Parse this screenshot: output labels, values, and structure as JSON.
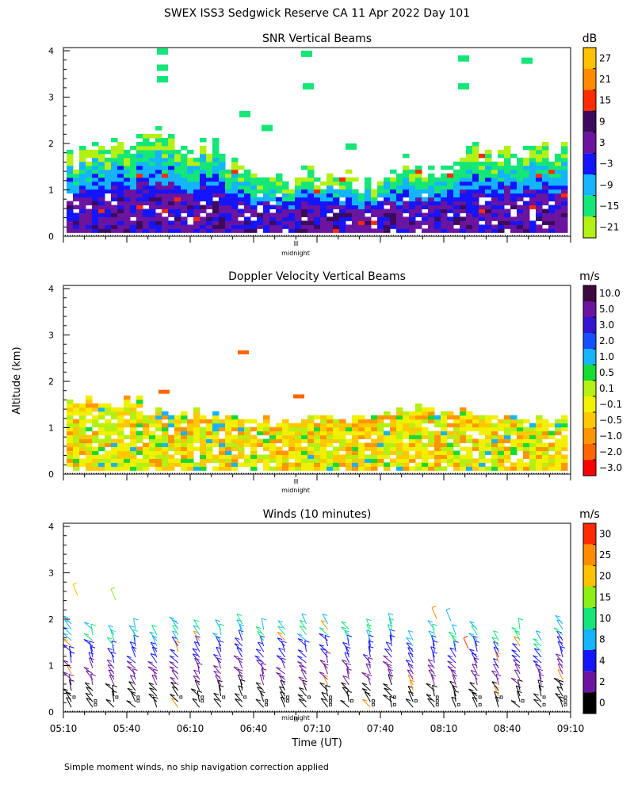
{
  "page": {
    "title": "SWEX ISS3 Sedgwick Reserve CA  11 Apr 2022 Day 101",
    "ylabel": "Altitude (km)",
    "xlabel": "Time (UT)",
    "footnote": "Simple moment winds, no ship navigation correction applied",
    "midnight_label": "midnight"
  },
  "chart_data": [
    {
      "type": "heatmap",
      "title": "SNR Vertical Beams",
      "ylim": [
        0,
        4
      ],
      "yticks": [
        "0",
        "1",
        "2",
        "3",
        "4"
      ],
      "colorbar": {
        "unit": "dB",
        "labels": [
          "27",
          "21",
          "15",
          "9",
          "3",
          "−3",
          "−9",
          "−15",
          "−21"
        ],
        "colors": [
          "#ffc200",
          "#ff8c00",
          "#ff2a00",
          "#3c0a5a",
          "#6a14a0",
          "#1414ff",
          "#14b4ff",
          "#14e678",
          "#b4f014"
        ]
      }
    },
    {
      "type": "heatmap",
      "title": "Doppler Velocity Vertical Beams",
      "ylim": [
        0,
        4
      ],
      "yticks": [
        "0",
        "1",
        "2",
        "3",
        "4"
      ],
      "colorbar": {
        "unit": "m/s",
        "labels": [
          "10.0",
          "5.0",
          "3.0",
          "2.0",
          "1.0",
          "0.5",
          "0.1",
          "−0.1",
          "−0.5",
          "−1.0",
          "−2.0",
          "−3.0"
        ],
        "colors": [
          "#3c0a3c",
          "#6a14a0",
          "#3214d2",
          "#1450ff",
          "#14b4ff",
          "#14dc32",
          "#b4f014",
          "#f0f000",
          "#ffc800",
          "#ff9600",
          "#ff6400",
          "#ff0000"
        ]
      }
    },
    {
      "type": "scatter",
      "title": "Winds (10 minutes)",
      "ylim": [
        0,
        4
      ],
      "yticks": [
        "0",
        "1",
        "2",
        "3",
        "4"
      ],
      "xlim": [
        "05:10",
        "09:10"
      ],
      "xticks": [
        "05:10",
        "05:40",
        "06:10",
        "06:40",
        "07:10",
        "07:40",
        "08:10",
        "08:40",
        "09:10"
      ],
      "colorbar": {
        "unit": "m/s",
        "labels": [
          "30",
          "25",
          "20",
          "15",
          "10",
          "8",
          "4",
          "2",
          "0"
        ],
        "colors": [
          "#ff2a00",
          "#ff8c00",
          "#ffc200",
          "#8cf014",
          "#14e678",
          "#14b4ff",
          "#1414ff",
          "#6a14a0",
          "#000000"
        ]
      }
    }
  ]
}
